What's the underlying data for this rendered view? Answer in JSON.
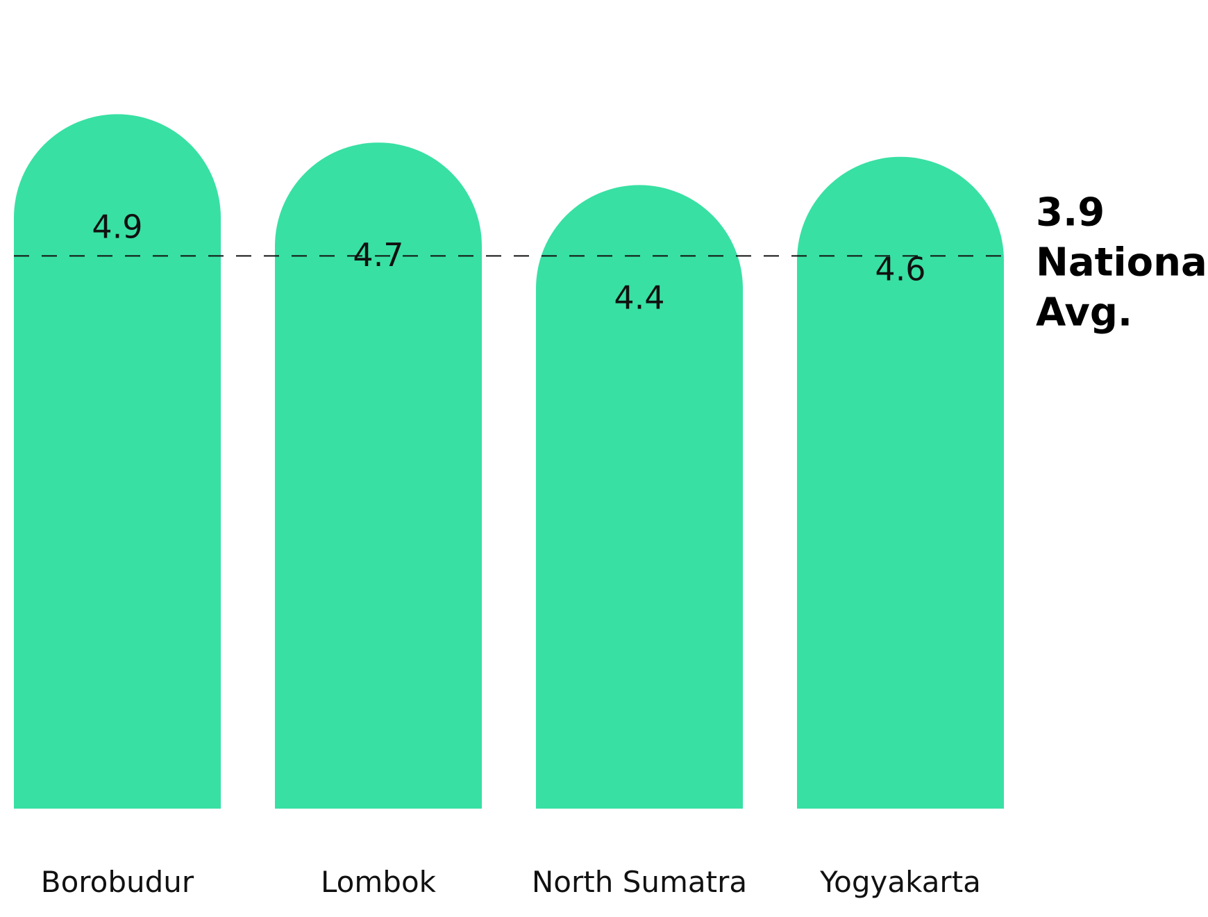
{
  "colors": {
    "bar": "#38e0a3",
    "reference_line": "#111111",
    "text": "#111111"
  },
  "chart_data": {
    "type": "bar",
    "categories": [
      "Borobudur",
      "Lombok",
      "North Sumatra",
      "Yogyakarta"
    ],
    "values": [
      4.9,
      4.7,
      4.4,
      4.6
    ],
    "value_labels": [
      "4.9",
      "4.7",
      "4.4",
      "4.6"
    ],
    "ylim": [
      0,
      5
    ],
    "reference_line": {
      "value": 3.9,
      "value_label": "3.9",
      "label": "National Avg."
    },
    "grid": false,
    "legend": "none",
    "bar_shape": "rounded-top"
  }
}
